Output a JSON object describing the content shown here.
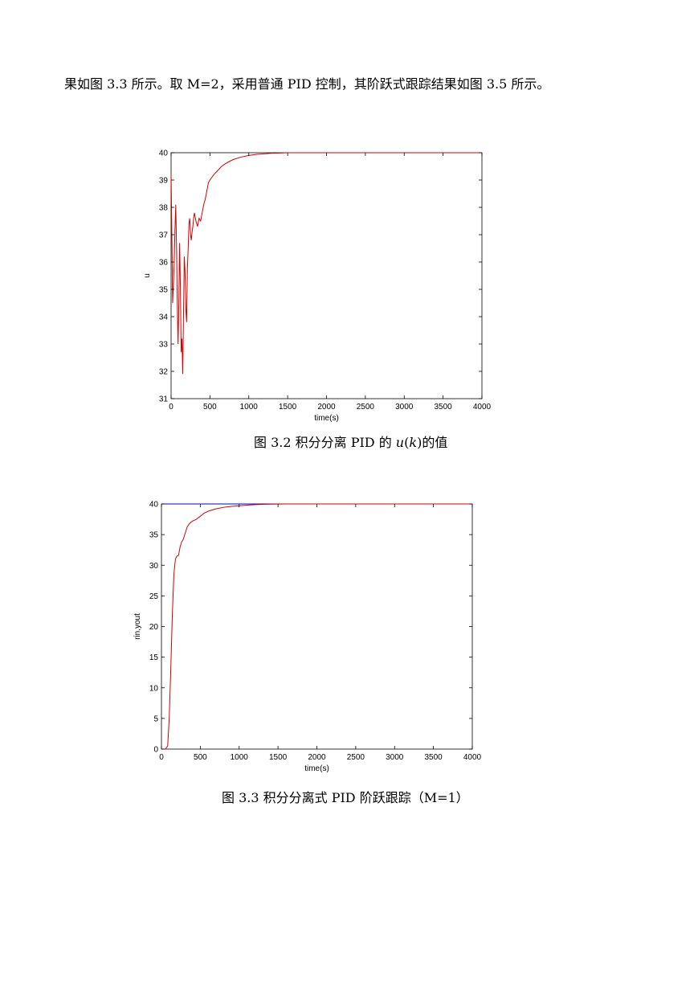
{
  "paragraph": {
    "text": "果如图 3.3 所示。取 M=2，采用普通 PID 控制，其阶跃式跟踪结果如图 3.5 所示。"
  },
  "figure1": {
    "caption_prefix": "图 3.2  积分分离 PID 的 ",
    "caption_u": "u",
    "caption_paren_open": "(",
    "caption_k": "k",
    "caption_paren_close": ")",
    "caption_suffix": "的值"
  },
  "figure2": {
    "caption": "图 3.3  积分分离式 PID 阶跃跟踪（M=1）"
  },
  "chart_data": [
    {
      "type": "line",
      "title": "",
      "xlabel": "time(s)",
      "ylabel": "u",
      "xlim": [
        0,
        4000
      ],
      "ylim": [
        31,
        40
      ],
      "xticks": [
        0,
        500,
        1000,
        1500,
        2000,
        2500,
        3000,
        3500,
        4000
      ],
      "yticks": [
        31,
        32,
        33,
        34,
        35,
        36,
        37,
        38,
        39,
        40
      ],
      "grid": false,
      "series": [
        {
          "color": "#d40000",
          "x": [
            0,
            10,
            20,
            30,
            40,
            50,
            60,
            70,
            80,
            90,
            100,
            110,
            120,
            130,
            140,
            150,
            160,
            170,
            180,
            190,
            200,
            210,
            220,
            230,
            240,
            250,
            260,
            270,
            280,
            290,
            300,
            320,
            340,
            360,
            380,
            400,
            420,
            440,
            460,
            480,
            500,
            550,
            600,
            650,
            700,
            750,
            800,
            900,
            1000,
            1100,
            1200,
            1300,
            1400,
            1500,
            1600,
            1700,
            2000,
            2500,
            3000,
            3500,
            4000
          ],
          "y": [
            39.2,
            37.0,
            34.5,
            35.2,
            36.0,
            37.2,
            38.1,
            36.6,
            34.4,
            33.0,
            34.6,
            36.7,
            35.0,
            32.7,
            33.2,
            31.9,
            34.1,
            36.2,
            35.6,
            34.3,
            33.8,
            35.8,
            36.5,
            37.4,
            37.6,
            37.0,
            36.8,
            37.1,
            37.3,
            37.6,
            37.8,
            37.5,
            37.3,
            37.6,
            37.5,
            37.8,
            38.1,
            38.3,
            38.6,
            38.9,
            39.0,
            39.2,
            39.35,
            39.5,
            39.6,
            39.68,
            39.75,
            39.84,
            39.9,
            39.94,
            39.96,
            39.98,
            39.99,
            40.0,
            40.0,
            40.0,
            40.0,
            40.0,
            40.0,
            40.0,
            40.0
          ]
        }
      ]
    },
    {
      "type": "line",
      "title": "",
      "xlabel": "time(s)",
      "ylabel": "rin,yout",
      "xlim": [
        0,
        4000
      ],
      "ylim": [
        0,
        40
      ],
      "xticks": [
        0,
        500,
        1000,
        1500,
        2000,
        2500,
        3000,
        3500,
        4000
      ],
      "yticks": [
        0,
        5,
        10,
        15,
        20,
        25,
        30,
        35,
        40
      ],
      "grid": false,
      "series": [
        {
          "color": "#0000d4",
          "x": [
            0,
            4000
          ],
          "y": [
            40,
            40
          ]
        },
        {
          "color": "#d40000",
          "x": [
            0,
            50,
            80,
            100,
            120,
            140,
            160,
            180,
            200,
            220,
            240,
            260,
            280,
            300,
            330,
            360,
            400,
            450,
            500,
            550,
            600,
            700,
            800,
            900,
            1000,
            1100,
            1200,
            1300,
            1400,
            1600,
            2000,
            3000,
            4000
          ],
          "y": [
            0,
            0,
            0.5,
            5,
            13,
            22,
            28.5,
            31.0,
            31.5,
            31.6,
            33.0,
            33.8,
            34.2,
            35.0,
            36.2,
            36.8,
            37.2,
            37.5,
            38.0,
            38.5,
            38.8,
            39.2,
            39.45,
            39.6,
            39.7,
            39.8,
            39.88,
            39.93,
            39.97,
            40.0,
            40.0,
            40.0,
            40.0
          ]
        }
      ]
    }
  ]
}
